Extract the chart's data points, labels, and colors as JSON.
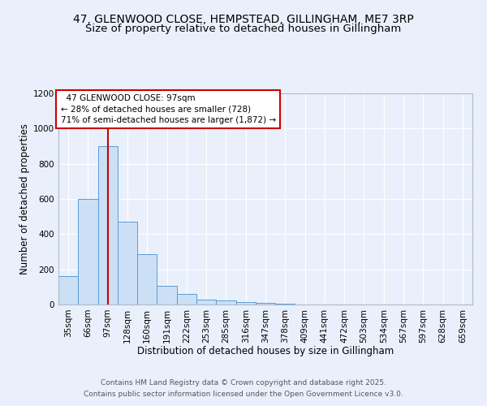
{
  "title_line1": "47, GLENWOOD CLOSE, HEMPSTEAD, GILLINGHAM, ME7 3RP",
  "title_line2": "Size of property relative to detached houses in Gillingham",
  "xlabel": "Distribution of detached houses by size in Gillingham",
  "ylabel": "Number of detached properties",
  "categories": [
    "35sqm",
    "66sqm",
    "97sqm",
    "128sqm",
    "160sqm",
    "191sqm",
    "222sqm",
    "253sqm",
    "285sqm",
    "316sqm",
    "347sqm",
    "378sqm",
    "409sqm",
    "441sqm",
    "472sqm",
    "503sqm",
    "534sqm",
    "567sqm",
    "597sqm",
    "628sqm",
    "659sqm"
  ],
  "values": [
    160,
    600,
    900,
    470,
    285,
    105,
    60,
    30,
    25,
    15,
    10,
    5,
    0,
    0,
    0,
    0,
    0,
    0,
    0,
    0,
    0
  ],
  "bar_color": "#cce0f5",
  "bar_edge_color": "#5b9bd5",
  "red_line_index": 2,
  "annotation_line1": "  47 GLENWOOD CLOSE: 97sqm",
  "annotation_line2": "← 28% of detached houses are smaller (728)",
  "annotation_line3": "71% of semi-detached houses are larger (1,872) →",
  "annotation_box_color": "#ffffff",
  "annotation_box_edge": "#cc0000",
  "ylim": [
    0,
    1200
  ],
  "yticks": [
    0,
    200,
    400,
    600,
    800,
    1000,
    1200
  ],
  "footer_line1": "Contains HM Land Registry data © Crown copyright and database right 2025.",
  "footer_line2": "Contains public sector information licensed under the Open Government Licence v3.0.",
  "background_color": "#eaf0fb",
  "plot_bg_color": "#eaf0fb",
  "title_fontsize": 10,
  "subtitle_fontsize": 9.5,
  "axis_label_fontsize": 8.5,
  "tick_fontsize": 7.5,
  "annotation_fontsize": 7.5,
  "footer_fontsize": 6.5
}
